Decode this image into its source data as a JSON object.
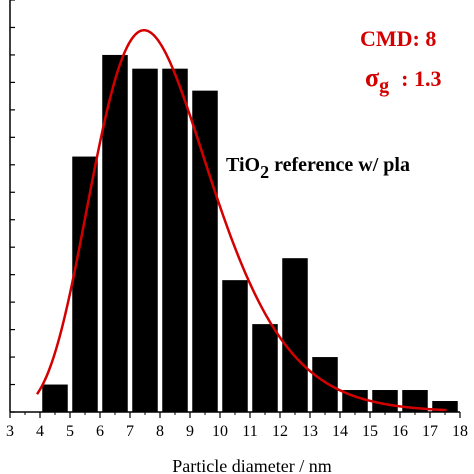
{
  "chart_data": {
    "type": "bar",
    "xlabel": "Particle diameter / nm",
    "ylabel": "",
    "xlim": [
      3,
      18
    ],
    "ylim": [
      0,
      15
    ],
    "x_ticks": [
      "3",
      "4",
      "5",
      "6",
      "7",
      "8",
      "9",
      "10",
      "11",
      "12",
      "13",
      "14",
      "15",
      "16",
      "17",
      "18"
    ],
    "bar_width": 0.85,
    "bars": [
      {
        "x": 4.5,
        "value": 1.0
      },
      {
        "x": 5.5,
        "value": 9.3
      },
      {
        "x": 6.5,
        "value": 13.0
      },
      {
        "x": 7.5,
        "value": 12.5
      },
      {
        "x": 8.5,
        "value": 12.5
      },
      {
        "x": 9.5,
        "value": 11.7
      },
      {
        "x": 10.5,
        "value": 4.8
      },
      {
        "x": 11.5,
        "value": 3.2
      },
      {
        "x": 12.5,
        "value": 5.6
      },
      {
        "x": 13.5,
        "value": 2.0
      },
      {
        "x": 14.5,
        "value": 0.8
      },
      {
        "x": 15.5,
        "value": 0.8
      },
      {
        "x": 16.5,
        "value": 0.8
      },
      {
        "x": 17.5,
        "value": 0.4
      }
    ],
    "fit_curve": {
      "type": "lognormal",
      "cmd": 8,
      "sigma_g": 1.3,
      "peak_value": 13.9,
      "color": "#d40000"
    },
    "annotations": {
      "cmd_text": "CMD: 8",
      "sigma_symbol": "σ",
      "sigma_sub": "g",
      "sigma_value": ": 1.3",
      "sample_prefix": "TiO",
      "sample_sub": "2",
      "sample_suffix": " reference w/ pla",
      "red_color": "#d40000"
    },
    "bar_color": "#000000",
    "grid": false
  }
}
